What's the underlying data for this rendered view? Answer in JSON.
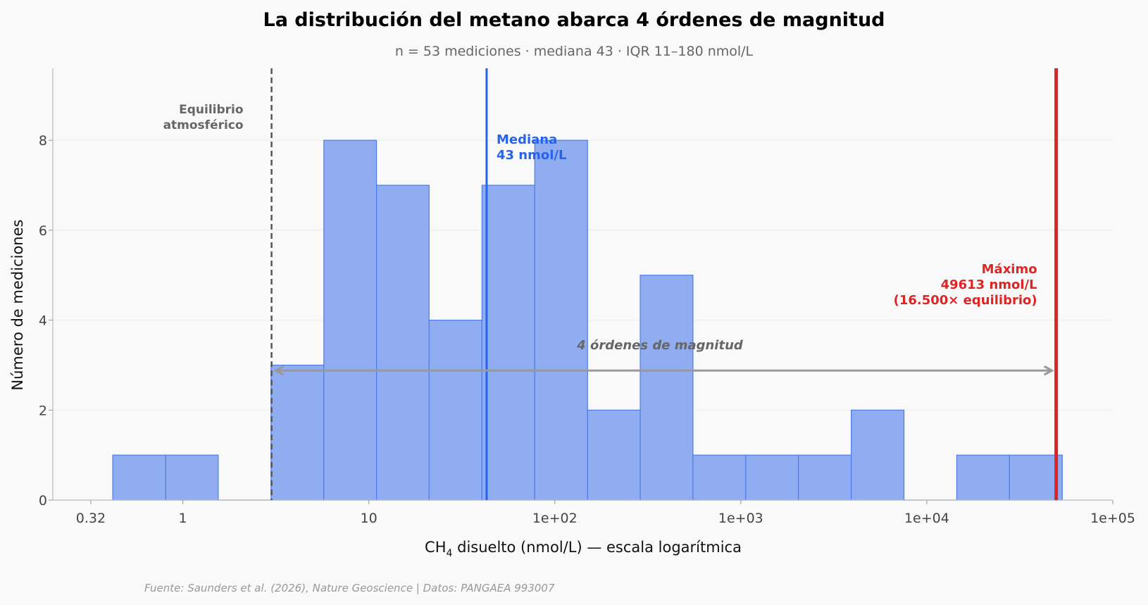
{
  "chart_data": {
    "type": "bar",
    "title": "La distribución del metano abarca 4 órdenes de magnitud",
    "subtitle": "n = 53 mediciones · mediana 43 · IQR 11–180 nmol/L",
    "xlabel_main": "CH",
    "xlabel_sub": "4",
    "xlabel_rest": " disuelto (nmol/L) — escala logarítmica",
    "ylabel": "Número de mediciones",
    "xscale": "log",
    "xlim": [
      0.2,
      100000
    ],
    "ylim": [
      0,
      9.6
    ],
    "x_ticks": [
      0.32,
      1,
      10,
      100,
      1000,
      10000,
      100000
    ],
    "x_tick_labels": [
      "0.32",
      "1",
      "10",
      "1e+02",
      "1e+03",
      "1e+04",
      "1e+05"
    ],
    "y_ticks": [
      0,
      2,
      4,
      6,
      8
    ],
    "y_tick_labels": [
      "0",
      "2",
      "4",
      "6",
      "8"
    ],
    "grid": "horizontal",
    "bin_edges": [
      0.42,
      0.81,
      1.55,
      2.98,
      5.73,
      11.0,
      21.1,
      40.6,
      78.0,
      150,
      288,
      553,
      1063,
      2042,
      3924,
      7540,
      14490,
      27840,
      53500
    ],
    "counts": [
      1,
      1,
      0,
      3,
      8,
      7,
      4,
      7,
      8,
      2,
      5,
      1,
      1,
      1,
      2,
      0,
      1,
      1
    ],
    "colors": {
      "bar_fill": "#8fadf0",
      "bar_edge": "#4f7be6",
      "median": "#2563eb",
      "max": "#dc2626",
      "equilibrium": "#555555",
      "span_arrow": "#999999"
    },
    "annotations": {
      "equilibrium": {
        "x": 3.0,
        "label_lines": [
          "Equilibrio",
          "atmosférico"
        ]
      },
      "median": {
        "x": 43,
        "label_lines": [
          "Mediana",
          "43 nmol/L"
        ]
      },
      "max": {
        "x": 49613,
        "label_lines": [
          "Máximo",
          "49613 nmol/L",
          "(16.500× equilibrio)"
        ]
      },
      "span": {
        "x_from": 3.0,
        "x_to": 49613,
        "y": 2.88,
        "label": "4 órdenes de magnitud"
      }
    },
    "source": "Fuente: Saunders et al. (2026), Nature Geoscience | Datos: PANGAEA 993007"
  }
}
